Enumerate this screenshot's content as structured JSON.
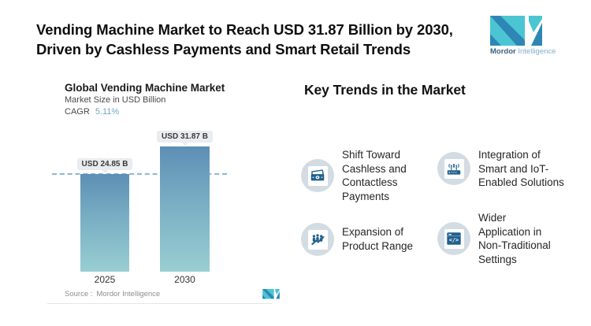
{
  "header": {
    "title_line1": "Vending Machine Market to Reach USD 31.87 Billion by 2030,",
    "title_line2": "Driven by Cashless Payments and Smart Retail Trends",
    "logo": {
      "brand_bold": "Mordor",
      "brand_light": "Intelligence"
    }
  },
  "chart": {
    "title": "Global Vending Machine Market",
    "subtitle": "Market Size in USD Billion",
    "cagr_label": "CAGR",
    "cagr_value": "5.11%",
    "source_label": "Source :",
    "source_value": "Mordor Intelligence"
  },
  "chart_data": {
    "type": "bar",
    "title": "Global Vending Machine Market",
    "ylabel": "Market Size in USD Billion",
    "cagr": "5.11%",
    "categories": [
      "2025",
      "2030"
    ],
    "values": [
      24.85,
      31.87
    ],
    "value_labels": [
      "USD 24.85 B",
      "USD 31.87 B"
    ],
    "reference_line": 24.85,
    "ylim": [
      0,
      35
    ],
    "grid": false,
    "legend": "none",
    "colors": {
      "bar_gradient_top": "#5d8fb4",
      "bar_gradient_bottom": "#99ced2",
      "dashed_line": "#90b6d6",
      "label_pill_bg": "#e9edef"
    }
  },
  "trends": {
    "heading": "Key Trends in the Market",
    "items": [
      {
        "icon": "cash-icon",
        "label": "Shift Toward Cashless and Contactless Payments"
      },
      {
        "icon": "iot-router-icon",
        "label": "Integration of Smart and IoT-Enabled Solutions"
      },
      {
        "icon": "growth-icon",
        "label": "Expansion of Product Range"
      },
      {
        "icon": "code-window-icon",
        "label": "Wider Application in Non-Traditional Settings"
      }
    ]
  },
  "colors": {
    "logo_teal": "#4bc5d2",
    "logo_blue": "#2e86b5",
    "icon_blue": "#20608d",
    "icon_circle_bg": "#d3dce3",
    "cagr_accent": "#6fa6c5"
  }
}
